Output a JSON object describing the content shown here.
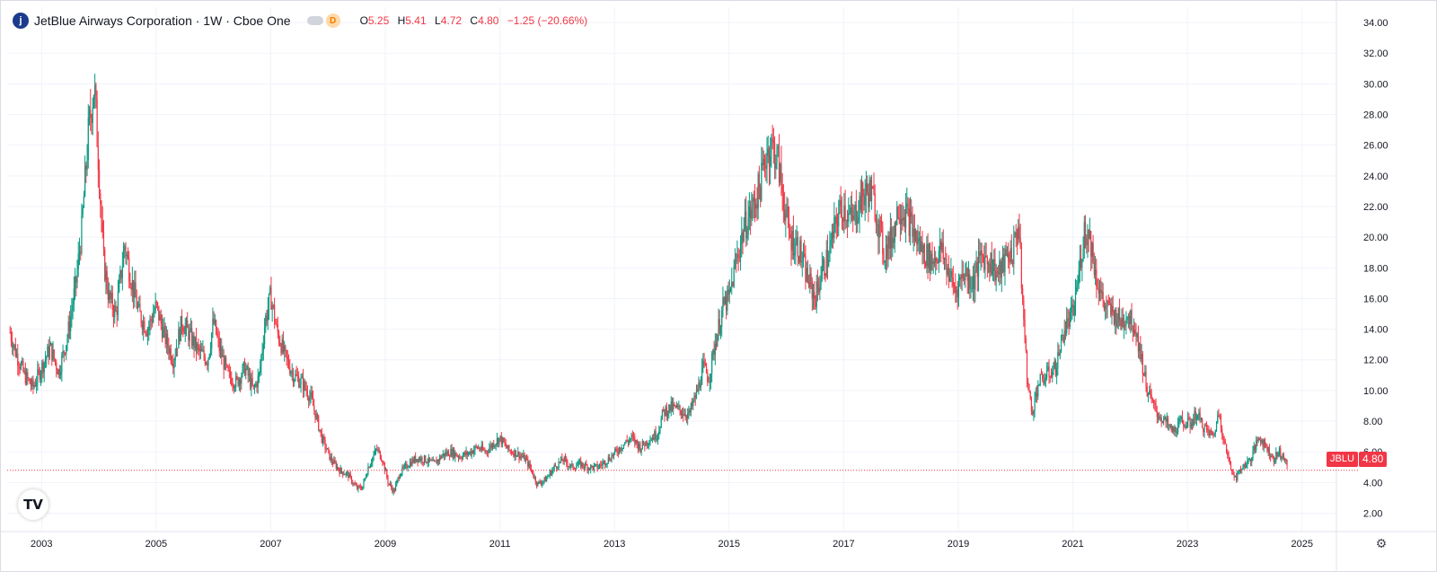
{
  "header": {
    "logo_letter": "j",
    "title": "JetBlue Airways Corporation · 1W · Cboe One",
    "badge": "D",
    "ohlc": [
      {
        "key": "O",
        "value": "5.25"
      },
      {
        "key": "H",
        "value": "5.41"
      },
      {
        "key": "L",
        "value": "4.72"
      },
      {
        "key": "C",
        "value": "4.80"
      }
    ],
    "change": "−1.25 (−20.66%)"
  },
  "last_price": {
    "ticker": "JBLU",
    "value": "4.80"
  },
  "watermark": "TV",
  "settings_icon": "gear-icon",
  "colors": {
    "up": "#089981",
    "down": "#f23645",
    "grid": "#f0f3fa",
    "text": "#131722"
  },
  "chart_data": {
    "type": "candlestick",
    "interval": "1W",
    "x_axis": {
      "ticks": [
        "2003",
        "2005",
        "2007",
        "2009",
        "2011",
        "2013",
        "2015",
        "2017",
        "2019",
        "2021",
        "2023",
        "2025"
      ],
      "range": [
        2002.4,
        2025.6
      ]
    },
    "y_axis": {
      "ticks": [
        "2.00",
        "4.00",
        "6.00",
        "8.00",
        "10.00",
        "12.00",
        "14.00",
        "16.00",
        "18.00",
        "20.00",
        "22.00",
        "24.00",
        "26.00",
        "28.00",
        "30.00",
        "32.00",
        "34.00"
      ],
      "range": [
        0.8,
        35.0
      ],
      "position": "right"
    },
    "last_value": 4.8,
    "grid": true,
    "price_path": [
      [
        2002.45,
        13.8
      ],
      [
        2002.55,
        12.5
      ],
      [
        2002.7,
        11.0
      ],
      [
        2002.85,
        10.2
      ],
      [
        2003.0,
        11.5
      ],
      [
        2003.15,
        12.8
      ],
      [
        2003.3,
        11.2
      ],
      [
        2003.45,
        13.5
      ],
      [
        2003.6,
        17.0
      ],
      [
        2003.7,
        20.5
      ],
      [
        2003.82,
        27.0
      ],
      [
        2003.92,
        30.0
      ],
      [
        2004.0,
        24.5
      ],
      [
        2004.08,
        18.5
      ],
      [
        2004.18,
        16.0
      ],
      [
        2004.3,
        15.0
      ],
      [
        2004.45,
        19.5
      ],
      [
        2004.55,
        17.5
      ],
      [
        2004.7,
        15.0
      ],
      [
        2004.85,
        14.0
      ],
      [
        2005.0,
        15.5
      ],
      [
        2005.15,
        13.5
      ],
      [
        2005.3,
        12.0
      ],
      [
        2005.45,
        14.5
      ],
      [
        2005.6,
        13.5
      ],
      [
        2005.75,
        12.5
      ],
      [
        2005.9,
        12.0
      ],
      [
        2006.0,
        14.5
      ],
      [
        2006.1,
        12.8
      ],
      [
        2006.25,
        11.0
      ],
      [
        2006.4,
        10.5
      ],
      [
        2006.55,
        11.5
      ],
      [
        2006.7,
        10.0
      ],
      [
        2006.8,
        11.0
      ],
      [
        2006.9,
        14.5
      ],
      [
        2007.0,
        16.2
      ],
      [
        2007.1,
        14.0
      ],
      [
        2007.25,
        12.2
      ],
      [
        2007.4,
        11.0
      ],
      [
        2007.55,
        10.5
      ],
      [
        2007.7,
        9.5
      ],
      [
        2007.8,
        8.2
      ],
      [
        2007.9,
        6.8
      ],
      [
        2008.05,
        5.5
      ],
      [
        2008.2,
        4.8
      ],
      [
        2008.35,
        4.5
      ],
      [
        2008.5,
        3.6
      ],
      [
        2008.6,
        3.7
      ],
      [
        2008.7,
        5.0
      ],
      [
        2008.85,
        6.2
      ],
      [
        2008.95,
        5.5
      ],
      [
        2009.05,
        4.0
      ],
      [
        2009.15,
        3.4
      ],
      [
        2009.25,
        4.6
      ],
      [
        2009.4,
        5.2
      ],
      [
        2009.55,
        5.6
      ],
      [
        2009.7,
        5.5
      ],
      [
        2009.85,
        5.2
      ],
      [
        2010.0,
        5.8
      ],
      [
        2010.15,
        6.0
      ],
      [
        2010.3,
        5.7
      ],
      [
        2010.45,
        5.9
      ],
      [
        2010.6,
        6.3
      ],
      [
        2010.75,
        6.0
      ],
      [
        2010.9,
        6.6
      ],
      [
        2011.0,
        6.9
      ],
      [
        2011.15,
        6.1
      ],
      [
        2011.3,
        5.9
      ],
      [
        2011.45,
        5.5
      ],
      [
        2011.55,
        4.8
      ],
      [
        2011.65,
        3.9
      ],
      [
        2011.8,
        4.2
      ],
      [
        2011.95,
        5.0
      ],
      [
        2012.1,
        5.5
      ],
      [
        2012.25,
        5.0
      ],
      [
        2012.4,
        5.2
      ],
      [
        2012.55,
        5.0
      ],
      [
        2012.7,
        5.0
      ],
      [
        2012.85,
        5.4
      ],
      [
        2013.0,
        5.9
      ],
      [
        2013.15,
        6.5
      ],
      [
        2013.3,
        6.9
      ],
      [
        2013.45,
        6.3
      ],
      [
        2013.6,
        6.8
      ],
      [
        2013.75,
        7.2
      ],
      [
        2013.85,
        8.6
      ],
      [
        2014.0,
        8.9
      ],
      [
        2014.15,
        8.7
      ],
      [
        2014.3,
        8.4
      ],
      [
        2014.45,
        10.0
      ],
      [
        2014.55,
        11.5
      ],
      [
        2014.65,
        10.8
      ],
      [
        2014.75,
        13.0
      ],
      [
        2014.9,
        15.5
      ],
      [
        2015.0,
        16.0
      ],
      [
        2015.1,
        18.0
      ],
      [
        2015.25,
        20.5
      ],
      [
        2015.4,
        21.8
      ],
      [
        2015.55,
        23.5
      ],
      [
        2015.65,
        25.5
      ],
      [
        2015.75,
        26.0
      ],
      [
        2015.85,
        25.0
      ],
      [
        2015.95,
        22.5
      ],
      [
        2016.05,
        20.0
      ],
      [
        2016.2,
        19.5
      ],
      [
        2016.35,
        17.5
      ],
      [
        2016.5,
        16.0
      ],
      [
        2016.6,
        17.5
      ],
      [
        2016.75,
        19.0
      ],
      [
        2016.9,
        21.5
      ],
      [
        2017.0,
        22.0
      ],
      [
        2017.15,
        21.0
      ],
      [
        2017.3,
        22.5
      ],
      [
        2017.45,
        23.0
      ],
      [
        2017.55,
        22.0
      ],
      [
        2017.7,
        19.0
      ],
      [
        2017.85,
        20.0
      ],
      [
        2017.95,
        22.0
      ],
      [
        2018.1,
        21.5
      ],
      [
        2018.25,
        20.0
      ],
      [
        2018.4,
        19.0
      ],
      [
        2018.55,
        18.5
      ],
      [
        2018.7,
        19.2
      ],
      [
        2018.85,
        17.5
      ],
      [
        2018.95,
        16.5
      ],
      [
        2019.1,
        17.8
      ],
      [
        2019.25,
        17.0
      ],
      [
        2019.4,
        18.8
      ],
      [
        2019.55,
        18.5
      ],
      [
        2019.7,
        17.5
      ],
      [
        2019.85,
        18.8
      ],
      [
        2019.95,
        19.0
      ],
      [
        2020.05,
        21.0
      ],
      [
        2020.12,
        16.0
      ],
      [
        2020.2,
        11.0
      ],
      [
        2020.28,
        8.5
      ],
      [
        2020.4,
        10.5
      ],
      [
        2020.55,
        11.0
      ],
      [
        2020.7,
        11.5
      ],
      [
        2020.85,
        14.0
      ],
      [
        2021.0,
        15.0
      ],
      [
        2021.1,
        17.5
      ],
      [
        2021.2,
        20.5
      ],
      [
        2021.3,
        20.0
      ],
      [
        2021.4,
        17.5
      ],
      [
        2021.55,
        15.5
      ],
      [
        2021.7,
        15.0
      ],
      [
        2021.85,
        14.5
      ],
      [
        2021.95,
        15.0
      ],
      [
        2022.1,
        14.0
      ],
      [
        2022.2,
        12.0
      ],
      [
        2022.3,
        10.0
      ],
      [
        2022.45,
        8.6
      ],
      [
        2022.6,
        8.0
      ],
      [
        2022.75,
        7.3
      ],
      [
        2022.9,
        8.0
      ],
      [
        2023.05,
        7.8
      ],
      [
        2023.15,
        8.5
      ],
      [
        2023.3,
        7.5
      ],
      [
        2023.45,
        7.0
      ],
      [
        2023.55,
        8.6
      ],
      [
        2023.65,
        6.5
      ],
      [
        2023.75,
        5.0
      ],
      [
        2023.85,
        4.3
      ],
      [
        2023.95,
        5.0
      ],
      [
        2024.1,
        5.5
      ],
      [
        2024.25,
        7.0
      ],
      [
        2024.4,
        6.2
      ],
      [
        2024.5,
        5.5
      ],
      [
        2024.6,
        6.0
      ],
      [
        2024.7,
        5.5
      ],
      [
        2024.75,
        4.8
      ]
    ]
  }
}
